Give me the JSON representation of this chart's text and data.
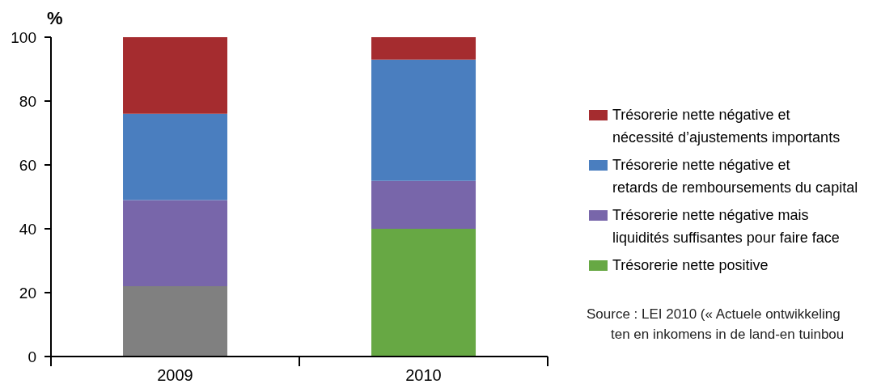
{
  "chart_data": {
    "type": "bar",
    "stacked": true,
    "ylabel": "%",
    "categories": [
      "2009",
      "2010"
    ],
    "ylim": [
      0,
      100
    ],
    "yticks": [
      0,
      20,
      40,
      60,
      80,
      100
    ],
    "grid": false,
    "legend": "right",
    "series": [
      {
        "color": "#808080",
        "values": [
          22,
          null
        ]
      },
      {
        "name": "Trésorerie nette positive",
        "color": "#67a844",
        "values": [
          null,
          40
        ]
      },
      {
        "name": "Trésorerie nette négative mais\nliquidités suffisantes pour faire face",
        "color": "#7866aa",
        "values": [
          27,
          15
        ]
      },
      {
        "name": "Trésorerie nette négative et\nretards de remboursements du capital",
        "color": "#4a7ebf",
        "values": [
          27,
          38
        ]
      },
      {
        "name": "Trésorerie nette négative et\nnécessité d’ajustements importants",
        "color": "#a52c2f",
        "values": [
          24,
          7
        ]
      }
    ],
    "annotations": [
      "Source : LEI 2010 (« Actuele ontwikkeling\nten en inkomens in de land-en tuinbou"
    ]
  }
}
